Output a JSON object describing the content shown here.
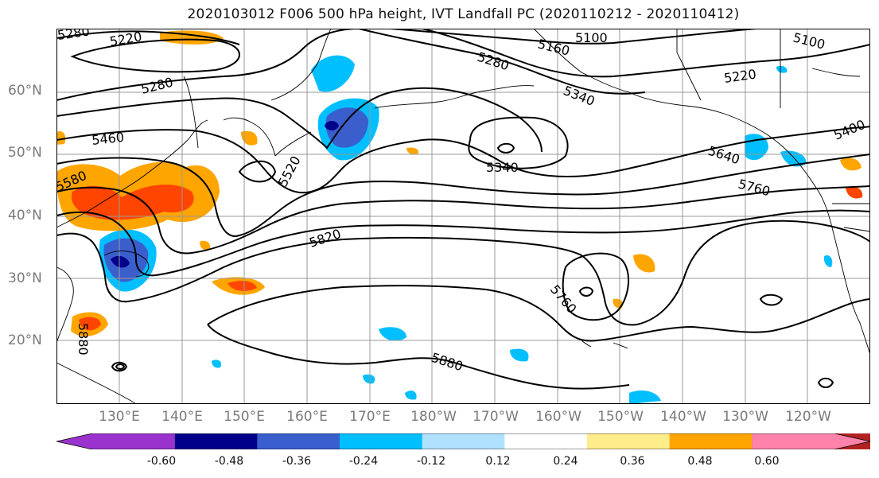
{
  "title": "2020103012 F006 500 hPa height, IVT Landfall PC (2020110212 - 2020110412)",
  "lat_labels": [
    "60°N",
    "50°N",
    "40°N",
    "30°N",
    "20°N"
  ],
  "lon_labels": [
    "130°E",
    "140°E",
    "150°E",
    "160°E",
    "170°E",
    "180°W",
    "170°W",
    "160°W",
    "150°W",
    "140°W",
    "130°W",
    "120°W"
  ],
  "contour_labels": [
    "5280",
    "5220",
    "5280",
    "5460",
    "5580",
    "5520",
    "5280",
    "5160",
    "5100",
    "5340",
    "5340",
    "5220",
    "5100",
    "5400",
    "5640",
    "5760",
    "5820",
    "5880",
    "5760",
    "5880"
  ],
  "colorbar": {
    "ticks": [
      "-0.60",
      "-0.48",
      "-0.36",
      "-0.24",
      "-0.12",
      "0.12",
      "0.24",
      "0.36",
      "0.48",
      "0.60"
    ],
    "colors": [
      "#9a32cd",
      "#00008b",
      "#3a5fcd",
      "#00bfff",
      "#b0e2ff",
      "#ffffff",
      "#ffec8b",
      "#ffa500",
      "#ff4500",
      "#b22222",
      "#ff82ab"
    ]
  },
  "colors": {
    "neg1": "#00bfff",
    "neg2": "#3a5fcd",
    "neg3": "#00008b",
    "pos1": "#ffa500",
    "pos2": "#ff4500",
    "lightblue": "#b0e2ff",
    "lightyellow": "#ffec8b"
  }
}
